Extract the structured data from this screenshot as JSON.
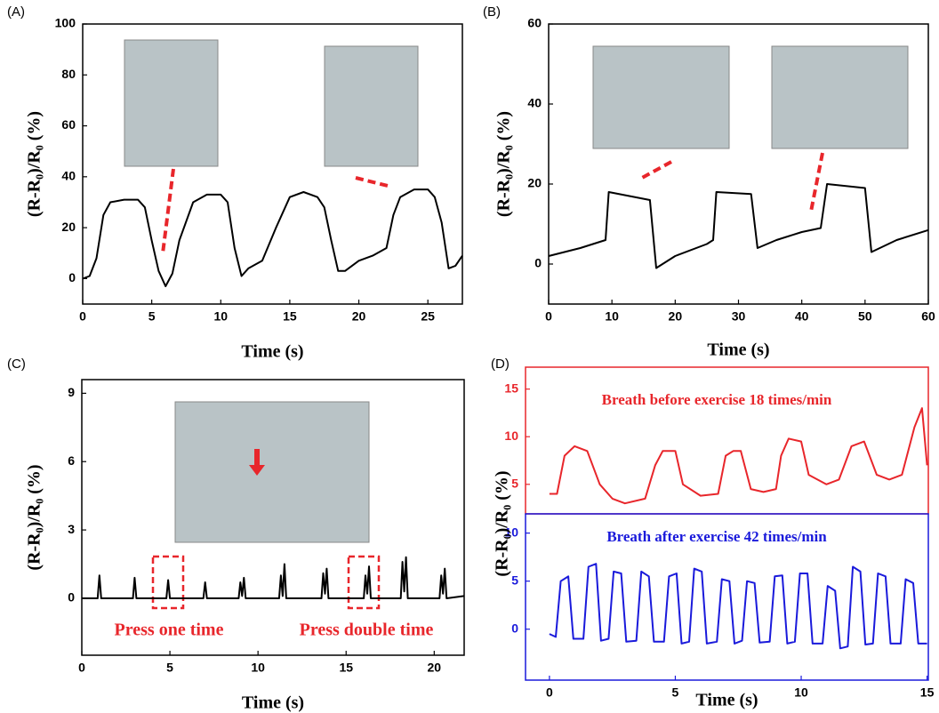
{
  "chart_data": [
    {
      "type": "line",
      "label": "(A)",
      "xlabel": "Time (s)",
      "ylabel": "(R-R₀)/R₀ (%)",
      "xlim": [
        0,
        27.5
      ],
      "xticks": [
        0,
        5,
        10,
        15,
        20,
        25
      ],
      "ylim": [
        -10,
        100
      ],
      "yticks": [
        0,
        20,
        40,
        60,
        80,
        100
      ],
      "series": [
        {
          "color": "#000000",
          "x": [
            0,
            0.5,
            1,
            1.5,
            2,
            3,
            4,
            4.5,
            5,
            5.5,
            6,
            6.5,
            7,
            8,
            9,
            10,
            10.5,
            11,
            11.5,
            12,
            13,
            14,
            15,
            16,
            17,
            17.5,
            18,
            18.5,
            19,
            20,
            21,
            22,
            22.5,
            23,
            24,
            25,
            25.5,
            26,
            26.5,
            27,
            27.5
          ],
          "values": [
            0,
            1,
            8,
            25,
            30,
            31,
            31,
            28,
            15,
            3,
            -3,
            2,
            15,
            30,
            33,
            33,
            30,
            12,
            1,
            4,
            7,
            20,
            32,
            34,
            32,
            28,
            15,
            3,
            3,
            7,
            9,
            12,
            25,
            32,
            35,
            35,
            32,
            22,
            4,
            5,
            9
          ]
        }
      ]
    },
    {
      "type": "line",
      "label": "(B)",
      "xlabel": "Time (s)",
      "ylabel": "(R-R₀)/R₀ (%)",
      "xlim": [
        0,
        60
      ],
      "xticks": [
        0,
        10,
        20,
        30,
        40,
        50,
        60
      ],
      "ylim": [
        -10,
        60
      ],
      "yticks": [
        0,
        20,
        40,
        60
      ],
      "series": [
        {
          "color": "#000000",
          "x": [
            0,
            5,
            9,
            9.5,
            16,
            17,
            20,
            25,
            26,
            26.5,
            32,
            33,
            36,
            40,
            43,
            44,
            50,
            51,
            55,
            60
          ],
          "values": [
            2,
            4,
            6,
            18,
            16,
            -1,
            2,
            5,
            6,
            18,
            17.5,
            4,
            6,
            8,
            9,
            20,
            19,
            3,
            6,
            8.5
          ]
        }
      ]
    },
    {
      "type": "line",
      "label": "(C)",
      "xlabel": "Time (s)",
      "ylabel": "(R-R₀)/R₀ (%)",
      "xlim": [
        0,
        21.7
      ],
      "xticks": [
        0,
        5,
        10,
        15,
        20
      ],
      "ylim": [
        -2.5,
        9.6
      ],
      "yticks": [
        0,
        3,
        6,
        9
      ],
      "annotations": [
        "Press one time",
        "Press double time"
      ],
      "series": [
        {
          "color": "#000000",
          "x": [
            0,
            0.9,
            1,
            1.1,
            2.9,
            3,
            3.1,
            4.8,
            4.9,
            5,
            6.9,
            7,
            7.1,
            8.9,
            9,
            9.1,
            9.2,
            9.3,
            11.2,
            11.3,
            11.4,
            11.5,
            11.6,
            13.6,
            13.7,
            13.8,
            13.9,
            14,
            16,
            16.1,
            16.2,
            16.3,
            16.4,
            18.1,
            18.2,
            18.3,
            18.4,
            18.5,
            20.3,
            20.4,
            20.5,
            20.6,
            20.7,
            21.7
          ],
          "values": [
            0,
            0,
            1,
            0,
            0,
            0.9,
            0,
            0,
            0.8,
            0,
            0,
            0.7,
            0,
            0,
            0.7,
            0.1,
            0.9,
            0,
            0,
            1,
            0.1,
            1.5,
            0,
            0,
            1.1,
            0.2,
            1.3,
            0,
            0,
            1,
            0.2,
            1.4,
            0,
            0,
            1.6,
            0.3,
            1.8,
            0,
            0,
            1,
            0.2,
            1.3,
            0,
            0.1
          ]
        }
      ]
    },
    {
      "type": "line",
      "label": "(D)",
      "xlabel": "Time (s)",
      "ylabel": "(R-R₀)/R₀ (%)",
      "xlim": [
        -0.95,
        15.05
      ],
      "xticks": [
        0,
        5,
        10,
        15
      ],
      "ylim": [
        -5.3,
        12
      ],
      "yticks": [
        0,
        5,
        10
      ],
      "y2lim": [
        1.9,
        17.3
      ],
      "y2ticks": [
        5,
        10,
        15
      ],
      "series": [
        {
          "name": "Breath before exercise   18 times/min",
          "color": "#e8262b",
          "axis": "y2",
          "x": [
            0,
            0.3,
            0.6,
            1,
            1.5,
            2,
            2.5,
            3,
            3.8,
            4.2,
            4.5,
            5,
            5.3,
            6,
            6.7,
            7,
            7.3,
            7.6,
            8,
            8.5,
            9,
            9.2,
            9.5,
            10,
            10.3,
            11,
            11.5,
            12,
            12.5,
            13,
            13.5,
            14,
            14.5,
            14.8,
            15
          ],
          "values": [
            4,
            4,
            8,
            9,
            8.5,
            5,
            3.5,
            3,
            3.5,
            7,
            8.5,
            8.5,
            5,
            3.8,
            4,
            8,
            8.5,
            8.5,
            4.5,
            4.2,
            4.5,
            8,
            9.8,
            9.5,
            6,
            5,
            5.5,
            9,
            9.5,
            6,
            5.5,
            6,
            11,
            13,
            7
          ]
        },
        {
          "name": "Breath after exercise   42 times/min",
          "color": "#1a1adb",
          "x": [
            0,
            0.25,
            0.45,
            0.75,
            0.95,
            1.35,
            1.55,
            1.85,
            2.05,
            2.35,
            2.55,
            2.85,
            3.05,
            3.45,
            3.65,
            3.95,
            4.15,
            4.55,
            4.75,
            5.05,
            5.25,
            5.55,
            5.75,
            6.05,
            6.25,
            6.65,
            6.85,
            7.15,
            7.35,
            7.65,
            7.85,
            8.15,
            8.35,
            8.75,
            8.95,
            9.25,
            9.45,
            9.75,
            9.95,
            10.25,
            10.45,
            10.85,
            11.05,
            11.35,
            11.55,
            11.85,
            12.05,
            12.35,
            12.55,
            12.85,
            13.05,
            13.35,
            13.55,
            13.95,
            14.15,
            14.45,
            14.65,
            15
          ],
          "values": [
            -0.5,
            -0.8,
            5,
            5.5,
            -1,
            -1,
            6.5,
            6.8,
            -1.2,
            -1,
            6,
            5.8,
            -1.3,
            -1.2,
            6,
            5.5,
            -1.3,
            -1.3,
            5.5,
            5.8,
            -1.5,
            -1.3,
            6.3,
            6,
            -1.5,
            -1.3,
            5.2,
            5,
            -1.5,
            -1.2,
            5,
            4.8,
            -1.4,
            -1.3,
            5.5,
            5.6,
            -1.5,
            -1.3,
            5.8,
            5.8,
            -1.5,
            -1.5,
            4.5,
            4,
            -2,
            -1.8,
            6.5,
            6,
            -1.6,
            -1.5,
            5.8,
            5.5,
            -1.5,
            -1.5,
            5.2,
            4.8,
            -1.5,
            -1.5
          ]
        }
      ]
    }
  ]
}
